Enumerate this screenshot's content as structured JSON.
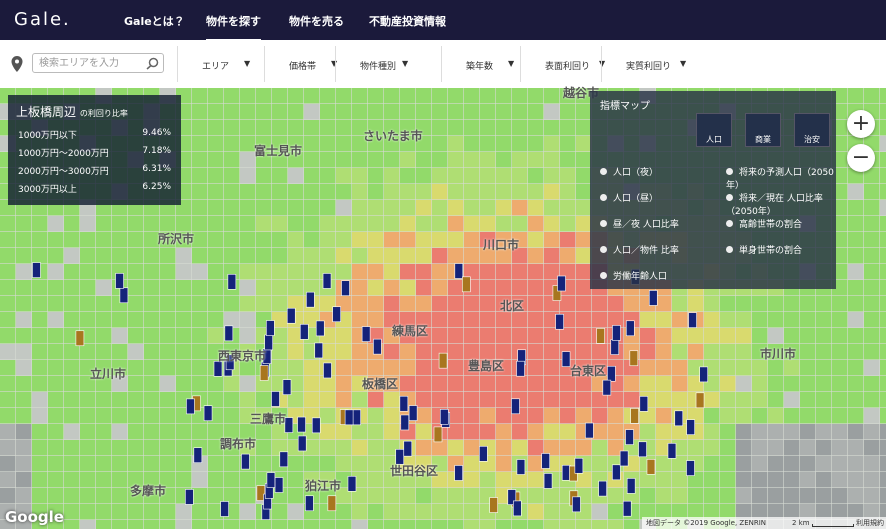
{
  "header": {
    "logo": "Gale.",
    "nav": [
      "Galeとは？",
      "物件を探す",
      "物件を売る",
      "不動産投資情報"
    ]
  },
  "search": {
    "placeholder": "検索エリアを入力",
    "filters": [
      "エリア",
      "価格帯",
      "物件種別",
      "築年数",
      "表面利回り",
      "実質利回り"
    ]
  },
  "yield_panel": {
    "title": "上板橋周辺",
    "subtitle": "の利回り比率",
    "rows": [
      [
        "1000万円以下",
        "9.46%"
      ],
      [
        "1000万円〜2000万円",
        "7.18%"
      ],
      [
        "2000万円〜3000万円",
        "6.31%"
      ],
      [
        "3000万円以上",
        "6.25%"
      ]
    ]
  },
  "index_map": {
    "title": "指標マップ",
    "buttons": [
      "人口",
      "商業",
      "治安"
    ],
    "options": [
      "人口（夜）",
      "人口（昼）",
      "昼／夜 人口比率",
      "人口／物件 比率",
      "労働年齢人口",
      "将来の予測人口（2050年）",
      "将来／現在 人口比率（2050年）",
      "高齢世帯の割合",
      "単身世帯の割合"
    ]
  },
  "map_labels": [
    "さいたま市",
    "富士見市",
    "所沢市",
    "川口市",
    "練馬区",
    "北区",
    "豊島区",
    "板橋区",
    "世田谷区",
    "台東区",
    "市川市",
    "西東京市",
    "立川市",
    "三鷹市",
    "調布市",
    "多摩市",
    "狛江市",
    "越谷市"
  ],
  "zoom": [
    "+",
    "−"
  ],
  "footer": {
    "brand": "Google",
    "attribution": "地図データ ©2019 Google, ZENRIN",
    "scale": "2 km",
    "terms": "利用規約"
  }
}
